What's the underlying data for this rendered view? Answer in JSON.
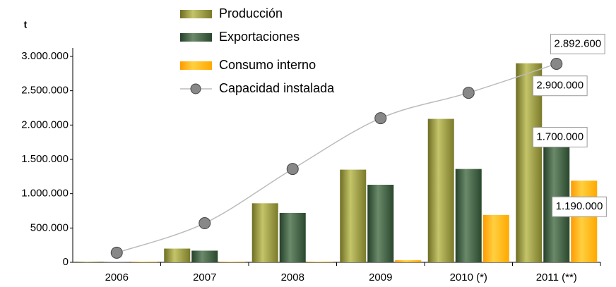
{
  "chart_data": {
    "type": "bar",
    "y_label": "t",
    "categories": [
      "2006",
      "2007",
      "2008",
      "2009",
      "2010 (*)",
      "2011 (**)"
    ],
    "series": [
      {
        "name": "Producción",
        "color": "#9c9c3c",
        "values": [
          10000,
          200000,
          860000,
          1350000,
          2090000,
          2900000
        ],
        "value_labels": [
          null,
          null,
          null,
          null,
          null,
          "2.900.000"
        ]
      },
      {
        "name": "Exportaciones",
        "color": "#3f5f3f",
        "values": [
          5000,
          170000,
          720000,
          1130000,
          1360000,
          1700000
        ],
        "value_labels": [
          null,
          null,
          null,
          null,
          null,
          "1.700.000"
        ]
      },
      {
        "name": "Consumo interno",
        "color": "#ffb000",
        "values": [
          10000,
          10000,
          10000,
          30000,
          690000,
          1190000
        ],
        "value_labels": [
          null,
          null,
          null,
          null,
          null,
          "1.190.000"
        ]
      },
      {
        "name": "Capacidad instalada",
        "type": "line",
        "color": "#bbbbbb",
        "marker_color": "#888888",
        "values": [
          140000,
          570000,
          1360000,
          2100000,
          2470000,
          2892600
        ],
        "value_labels": [
          null,
          null,
          null,
          null,
          null,
          "2.892.600"
        ]
      }
    ],
    "ylim": [
      0,
      3000000
    ],
    "yticks": [
      0,
      {
        "value": 500000,
        "label": "500.000"
      },
      {
        "value": 1000000,
        "label": "1.000.000"
      },
      {
        "value": 1500000,
        "label": "1.500.000"
      },
      {
        "value": 2000000,
        "label": "2.000.000"
      },
      {
        "value": 2500000,
        "label": "2.500.000"
      },
      {
        "value": 3000000,
        "label": "3.000.000"
      }
    ],
    "grid": false
  }
}
